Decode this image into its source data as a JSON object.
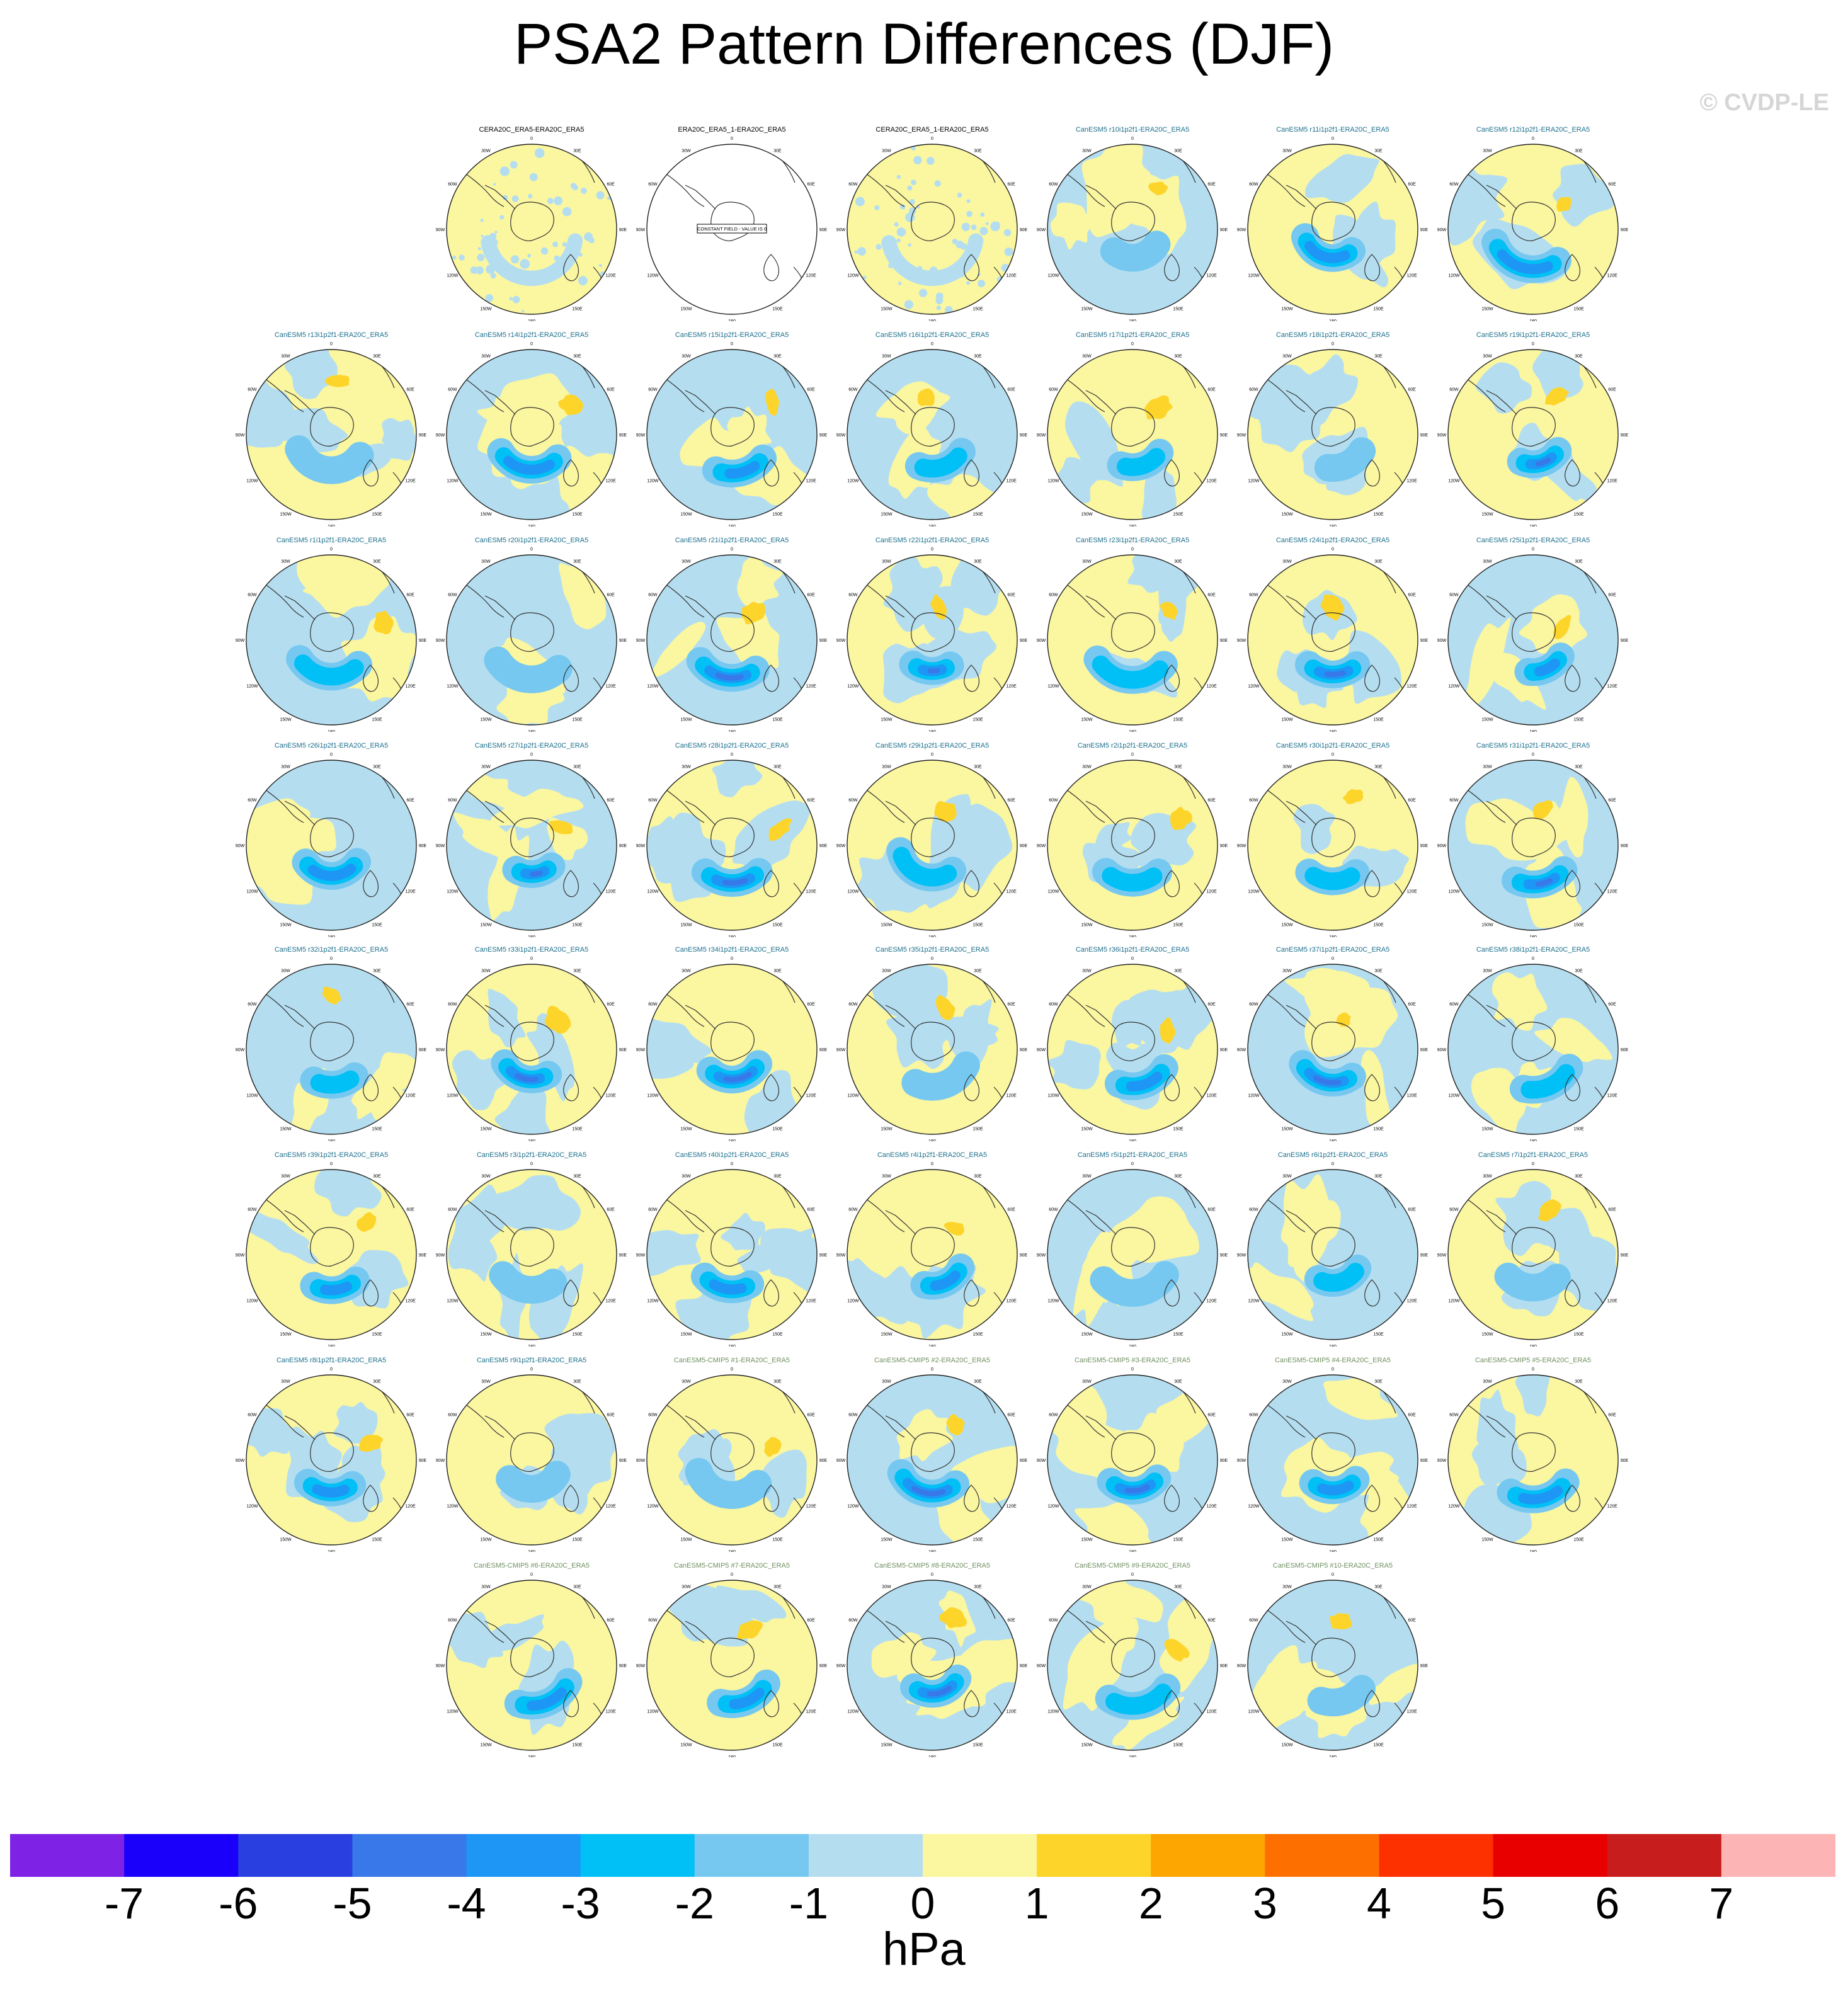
{
  "figure": {
    "title": "PSA2 Pattern Differences (DJF)",
    "watermark": "© CVDP-LE",
    "units": "hPa"
  },
  "map_labels": {
    "lon": [
      "0",
      "30E",
      "60E",
      "90E",
      "120E",
      "150E",
      "180",
      "150W",
      "120W",
      "90W",
      "60W",
      "30W"
    ],
    "constant_field": "CONSTANT FIELD - VALUE IS 0"
  },
  "panels": [
    {
      "title": "CERA20C_ERA5-ERA20C_ERA5",
      "kind": "obs",
      "field": "obs"
    },
    {
      "title": "ERA20C_ERA5_1-ERA20C_ERA5",
      "kind": "obs",
      "field": "constant"
    },
    {
      "title": "CERA20C_ERA5_1-ERA20C_ERA5",
      "kind": "obs",
      "field": "obs"
    },
    {
      "title": "CanESM5 r10i1p2f1-ERA20C_ERA5",
      "kind": "mem"
    },
    {
      "title": "CanESM5 r11i1p2f1-ERA20C_ERA5",
      "kind": "mem"
    },
    {
      "title": "CanESM5 r12i1p2f1-ERA20C_ERA5",
      "kind": "mem"
    },
    {
      "title": "CanESM5 r13i1p2f1-ERA20C_ERA5",
      "kind": "mem"
    },
    {
      "title": "CanESM5 r14i1p2f1-ERA20C_ERA5",
      "kind": "mem"
    },
    {
      "title": "CanESM5 r15i1p2f1-ERA20C_ERA5",
      "kind": "mem"
    },
    {
      "title": "CanESM5 r16i1p2f1-ERA20C_ERA5",
      "kind": "mem"
    },
    {
      "title": "CanESM5 r17i1p2f1-ERA20C_ERA5",
      "kind": "mem"
    },
    {
      "title": "CanESM5 r18i1p2f1-ERA20C_ERA5",
      "kind": "mem"
    },
    {
      "title": "CanESM5 r19i1p2f1-ERA20C_ERA5",
      "kind": "mem"
    },
    {
      "title": "CanESM5 r1i1p2f1-ERA20C_ERA5",
      "kind": "mem"
    },
    {
      "title": "CanESM5 r20i1p2f1-ERA20C_ERA5",
      "kind": "mem"
    },
    {
      "title": "CanESM5 r21i1p2f1-ERA20C_ERA5",
      "kind": "mem"
    },
    {
      "title": "CanESM5 r22i1p2f1-ERA20C_ERA5",
      "kind": "mem"
    },
    {
      "title": "CanESM5 r23i1p2f1-ERA20C_ERA5",
      "kind": "mem"
    },
    {
      "title": "CanESM5 r24i1p2f1-ERA20C_ERA5",
      "kind": "mem"
    },
    {
      "title": "CanESM5 r25i1p2f1-ERA20C_ERA5",
      "kind": "mem"
    },
    {
      "title": "CanESM5 r26i1p2f1-ERA20C_ERA5",
      "kind": "mem"
    },
    {
      "title": "CanESM5 r27i1p2f1-ERA20C_ERA5",
      "kind": "mem"
    },
    {
      "title": "CanESM5 r28i1p2f1-ERA20C_ERA5",
      "kind": "mem"
    },
    {
      "title": "CanESM5 r29i1p2f1-ERA20C_ERA5",
      "kind": "mem"
    },
    {
      "title": "CanESM5 r2i1p2f1-ERA20C_ERA5",
      "kind": "mem"
    },
    {
      "title": "CanESM5 r30i1p2f1-ERA20C_ERA5",
      "kind": "mem"
    },
    {
      "title": "CanESM5 r31i1p2f1-ERA20C_ERA5",
      "kind": "mem"
    },
    {
      "title": "CanESM5 r32i1p2f1-ERA20C_ERA5",
      "kind": "mem"
    },
    {
      "title": "CanESM5 r33i1p2f1-ERA20C_ERA5",
      "kind": "mem"
    },
    {
      "title": "CanESM5 r34i1p2f1-ERA20C_ERA5",
      "kind": "mem"
    },
    {
      "title": "CanESM5 r35i1p2f1-ERA20C_ERA5",
      "kind": "mem"
    },
    {
      "title": "CanESM5 r36i1p2f1-ERA20C_ERA5",
      "kind": "mem"
    },
    {
      "title": "CanESM5 r37i1p2f1-ERA20C_ERA5",
      "kind": "mem"
    },
    {
      "title": "CanESM5 r38i1p2f1-ERA20C_ERA5",
      "kind": "mem"
    },
    {
      "title": "CanESM5 r39i1p2f1-ERA20C_ERA5",
      "kind": "mem"
    },
    {
      "title": "CanESM5 r3i1p2f1-ERA20C_ERA5",
      "kind": "mem"
    },
    {
      "title": "CanESM5 r40i1p2f1-ERA20C_ERA5",
      "kind": "mem"
    },
    {
      "title": "CanESM5 r4i1p2f1-ERA20C_ERA5",
      "kind": "mem"
    },
    {
      "title": "CanESM5 r5i1p2f1-ERA20C_ERA5",
      "kind": "mem"
    },
    {
      "title": "CanESM5 r6i1p2f1-ERA20C_ERA5",
      "kind": "mem"
    },
    {
      "title": "CanESM5 r7i1p2f1-ERA20C_ERA5",
      "kind": "mem"
    },
    {
      "title": "CanESM5 r8i1p2f1-ERA20C_ERA5",
      "kind": "mem"
    },
    {
      "title": "CanESM5 r9i1p2f1-ERA20C_ERA5",
      "kind": "mem"
    },
    {
      "title": "CanESM5-CMIP5 #1-ERA20C_ERA5",
      "kind": "cmip"
    },
    {
      "title": "CanESM5-CMIP5 #2-ERA20C_ERA5",
      "kind": "cmip"
    },
    {
      "title": "CanESM5-CMIP5 #3-ERA20C_ERA5",
      "kind": "cmip"
    },
    {
      "title": "CanESM5-CMIP5 #4-ERA20C_ERA5",
      "kind": "cmip"
    },
    {
      "title": "CanESM5-CMIP5 #5-ERA20C_ERA5",
      "kind": "cmip"
    },
    {
      "title": "CanESM5-CMIP5 #6-ERA20C_ERA5",
      "kind": "cmip"
    },
    {
      "title": "CanESM5-CMIP5 #7-ERA20C_ERA5",
      "kind": "cmip"
    },
    {
      "title": "CanESM5-CMIP5 #8-ERA20C_ERA5",
      "kind": "cmip"
    },
    {
      "title": "CanESM5-CMIP5 #9-ERA20C_ERA5",
      "kind": "cmip"
    },
    {
      "title": "CanESM5-CMIP5 #10-ERA20C_ERA5",
      "kind": "cmip"
    }
  ],
  "chart_data": {
    "type": "heatmap",
    "title": "PSA2 Pattern Differences (DJF)",
    "units": "hPa",
    "projection": "south polar stereographic",
    "colorbar": {
      "ticks": [
        "-7",
        "-6",
        "-5",
        "-4",
        "-3",
        "-2",
        "-1",
        "0",
        "1",
        "2",
        "3",
        "4",
        "5",
        "6",
        "7"
      ],
      "colors": [
        "#7e22e6",
        "#1a00fa",
        "#2a3fe0",
        "#3878e8",
        "#1e96f5",
        "#00c0f5",
        "#76c8f0",
        "#b4def0",
        "#fbf6a0",
        "#fdd42a",
        "#fda500",
        "#fd7000",
        "#fd3000",
        "#e80000",
        "#c81d1d",
        "#fdb4b4"
      ]
    }
  }
}
